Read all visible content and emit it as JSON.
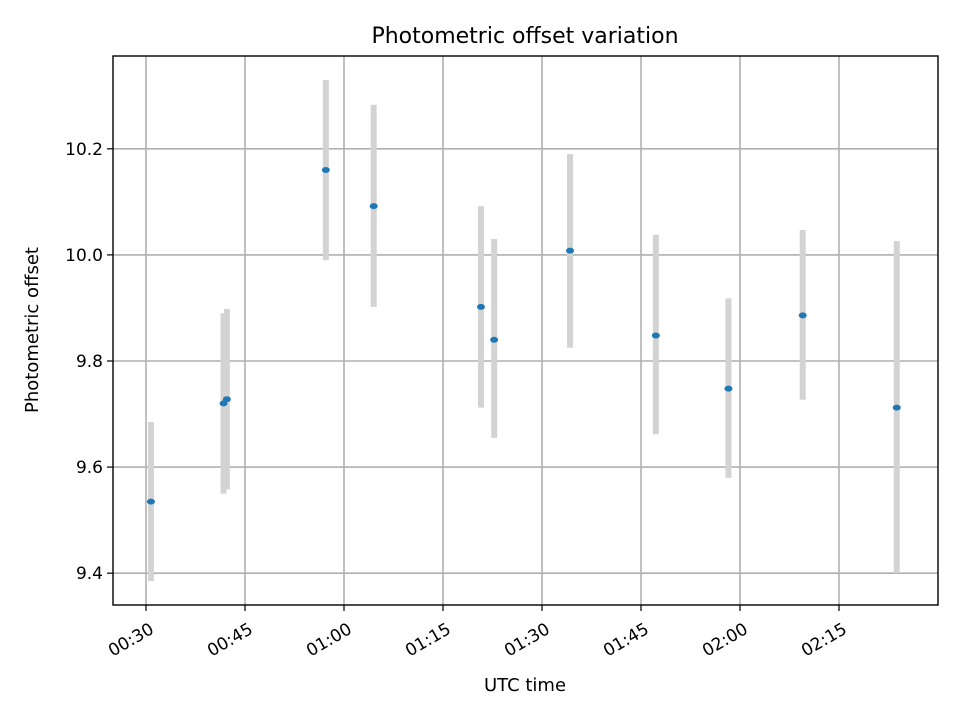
{
  "chart_data": {
    "type": "scatter",
    "title": "Photometric offset variation",
    "xlabel": "UTC time",
    "ylabel": "Photometric offset",
    "x_unit": "time HH:MM",
    "xlim": [
      "00:25",
      "02:30"
    ],
    "ylim": [
      9.34,
      10.375
    ],
    "x_ticks": [
      "00:30",
      "00:45",
      "01:00",
      "01:15",
      "01:30",
      "01:45",
      "02:00",
      "02:15"
    ],
    "y_ticks": [
      "9.4",
      "9.6",
      "9.8",
      "10.0",
      "10.2"
    ],
    "grid": true,
    "error_bar_color": "#d3d3d3",
    "marker_color": "#1f77b4",
    "points": [
      {
        "x": "00:30:45",
        "y": 9.535,
        "ylow": 9.385,
        "yhigh": 9.685
      },
      {
        "x": "00:41:45",
        "y": 9.72,
        "ylow": 9.55,
        "yhigh": 9.89
      },
      {
        "x": "00:42:15",
        "y": 9.728,
        "ylow": 9.558,
        "yhigh": 9.898
      },
      {
        "x": "00:57:15",
        "y": 10.16,
        "ylow": 9.99,
        "yhigh": 10.33
      },
      {
        "x": "01:04:30",
        "y": 10.092,
        "ylow": 9.902,
        "yhigh": 10.283
      },
      {
        "x": "01:20:45",
        "y": 9.902,
        "ylow": 9.712,
        "yhigh": 10.092
      },
      {
        "x": "01:22:45",
        "y": 9.84,
        "ylow": 9.655,
        "yhigh": 10.03
      },
      {
        "x": "01:34:15",
        "y": 10.008,
        "ylow": 9.825,
        "yhigh": 10.19
      },
      {
        "x": "01:47:15",
        "y": 9.848,
        "ylow": 9.662,
        "yhigh": 10.038
      },
      {
        "x": "01:58:15",
        "y": 9.748,
        "ylow": 9.58,
        "yhigh": 9.918
      },
      {
        "x": "02:09:30",
        "y": 9.886,
        "ylow": 9.727,
        "yhigh": 10.047
      },
      {
        "x": "02:23:45",
        "y": 9.712,
        "ylow": 9.4,
        "yhigh": 10.026
      }
    ]
  }
}
